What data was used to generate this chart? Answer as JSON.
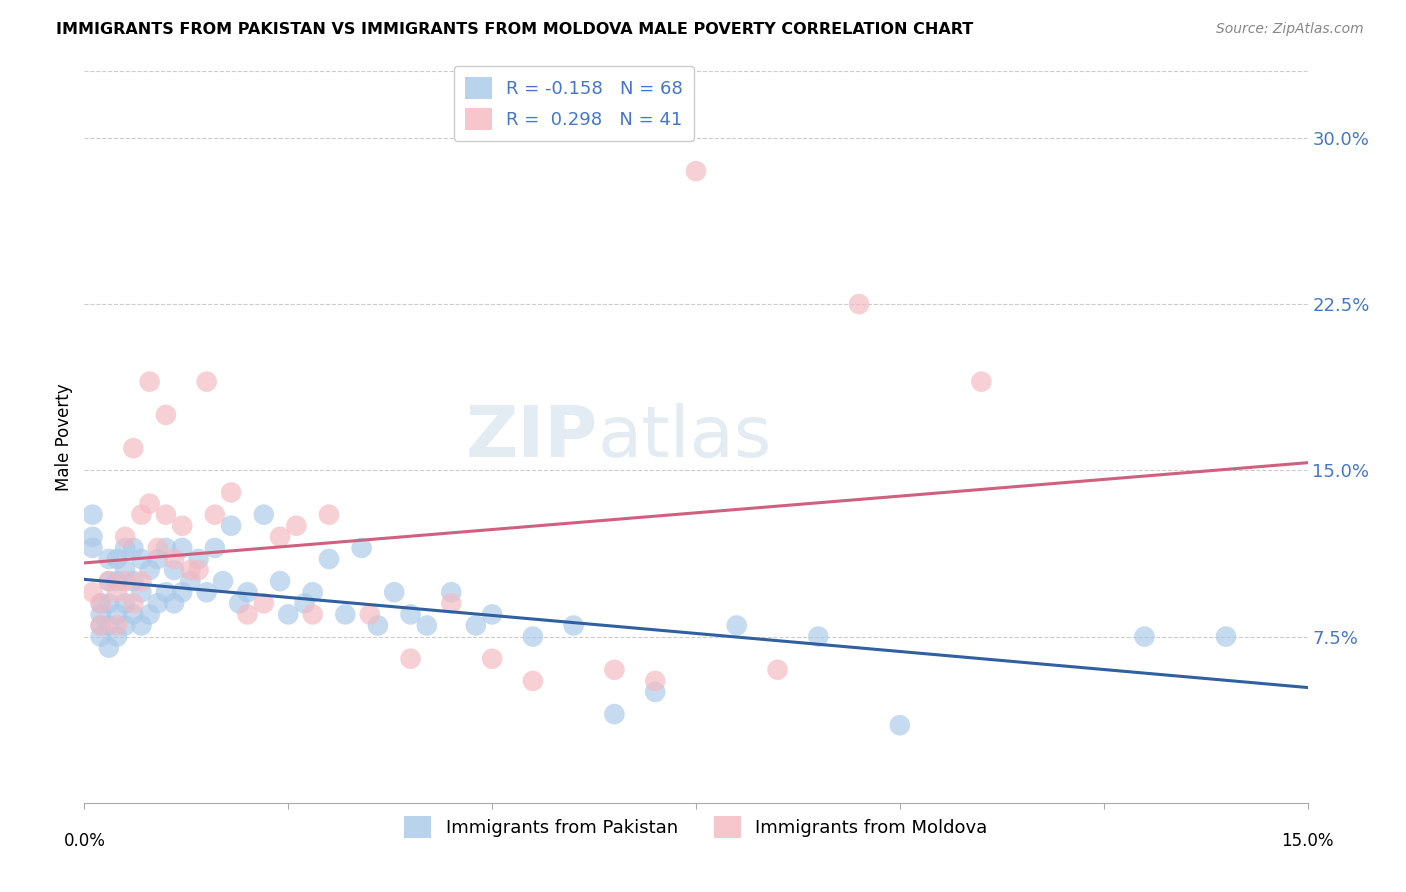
{
  "title": "IMMIGRANTS FROM PAKISTAN VS IMMIGRANTS FROM MOLDOVA MALE POVERTY CORRELATION CHART",
  "source": "Source: ZipAtlas.com",
  "ylabel": "Male Poverty",
  "ytick_labels": [
    "7.5%",
    "15.0%",
    "22.5%",
    "30.0%"
  ],
  "ytick_values": [
    0.075,
    0.15,
    0.225,
    0.3
  ],
  "xlim": [
    0.0,
    0.15
  ],
  "ylim": [
    0.0,
    0.33
  ],
  "legend_r_pakistan": "-0.158",
  "legend_n_pakistan": "68",
  "legend_r_moldova": "0.298",
  "legend_n_moldova": "41",
  "pakistan_color": "#a8c8e8",
  "moldova_color": "#f4b8c0",
  "pakistan_line_color": "#3060a0",
  "moldova_line_color": "#d06080",
  "legend_text_color": "#4477cc",
  "background_color": "#ffffff",
  "watermark": "ZIPatlas",
  "pakistan_x": [
    0.001,
    0.001,
    0.001,
    0.002,
    0.002,
    0.002,
    0.002,
    0.003,
    0.003,
    0.003,
    0.003,
    0.003,
    0.004,
    0.004,
    0.004,
    0.004,
    0.005,
    0.005,
    0.005,
    0.005,
    0.006,
    0.006,
    0.006,
    0.007,
    0.007,
    0.007,
    0.008,
    0.008,
    0.009,
    0.009,
    0.01,
    0.01,
    0.011,
    0.011,
    0.012,
    0.012,
    0.013,
    0.014,
    0.015,
    0.016,
    0.017,
    0.018,
    0.019,
    0.02,
    0.022,
    0.024,
    0.025,
    0.027,
    0.028,
    0.03,
    0.032,
    0.034,
    0.036,
    0.038,
    0.04,
    0.042,
    0.045,
    0.048,
    0.05,
    0.055,
    0.06,
    0.065,
    0.07,
    0.08,
    0.09,
    0.1,
    0.13,
    0.14
  ],
  "pakistan_y": [
    0.13,
    0.12,
    0.115,
    0.09,
    0.085,
    0.08,
    0.075,
    0.11,
    0.1,
    0.09,
    0.08,
    0.07,
    0.11,
    0.1,
    0.085,
    0.075,
    0.115,
    0.105,
    0.09,
    0.08,
    0.115,
    0.1,
    0.085,
    0.11,
    0.095,
    0.08,
    0.105,
    0.085,
    0.11,
    0.09,
    0.115,
    0.095,
    0.105,
    0.09,
    0.115,
    0.095,
    0.1,
    0.11,
    0.095,
    0.115,
    0.1,
    0.125,
    0.09,
    0.095,
    0.13,
    0.1,
    0.085,
    0.09,
    0.095,
    0.11,
    0.085,
    0.115,
    0.08,
    0.095,
    0.085,
    0.08,
    0.095,
    0.08,
    0.085,
    0.075,
    0.08,
    0.04,
    0.05,
    0.08,
    0.075,
    0.035,
    0.075,
    0.075
  ],
  "moldova_x": [
    0.001,
    0.002,
    0.002,
    0.003,
    0.004,
    0.004,
    0.005,
    0.005,
    0.006,
    0.006,
    0.007,
    0.007,
    0.008,
    0.008,
    0.009,
    0.01,
    0.01,
    0.011,
    0.012,
    0.013,
    0.014,
    0.015,
    0.016,
    0.018,
    0.02,
    0.022,
    0.024,
    0.026,
    0.028,
    0.03,
    0.035,
    0.04,
    0.045,
    0.05,
    0.055,
    0.065,
    0.07,
    0.075,
    0.085,
    0.095,
    0.11
  ],
  "moldova_y": [
    0.095,
    0.09,
    0.08,
    0.1,
    0.095,
    0.08,
    0.12,
    0.1,
    0.16,
    0.09,
    0.13,
    0.1,
    0.19,
    0.135,
    0.115,
    0.175,
    0.13,
    0.11,
    0.125,
    0.105,
    0.105,
    0.19,
    0.13,
    0.14,
    0.085,
    0.09,
    0.12,
    0.125,
    0.085,
    0.13,
    0.085,
    0.065,
    0.09,
    0.065,
    0.055,
    0.06,
    0.055,
    0.285,
    0.06,
    0.225,
    0.19
  ]
}
